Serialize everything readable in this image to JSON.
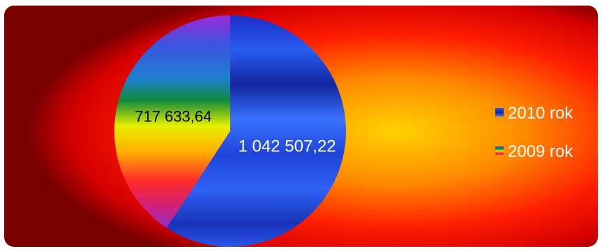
{
  "chart_data": {
    "type": "pie",
    "title": "",
    "categories": [
      "2010 rok",
      "2009 rok"
    ],
    "values": [
      1042507.22,
      717633.64
    ],
    "value_labels": [
      "1 042 507,22",
      "717 633,64"
    ],
    "legend": {
      "placement": "right",
      "entries": [
        "2010 rok",
        "2009 rok"
      ]
    },
    "colors": {
      "slice_2010": "#1f3fd0",
      "slice_2009": "rainbow",
      "background_outer": "#c00000",
      "background_inner": "#ffd000"
    }
  }
}
